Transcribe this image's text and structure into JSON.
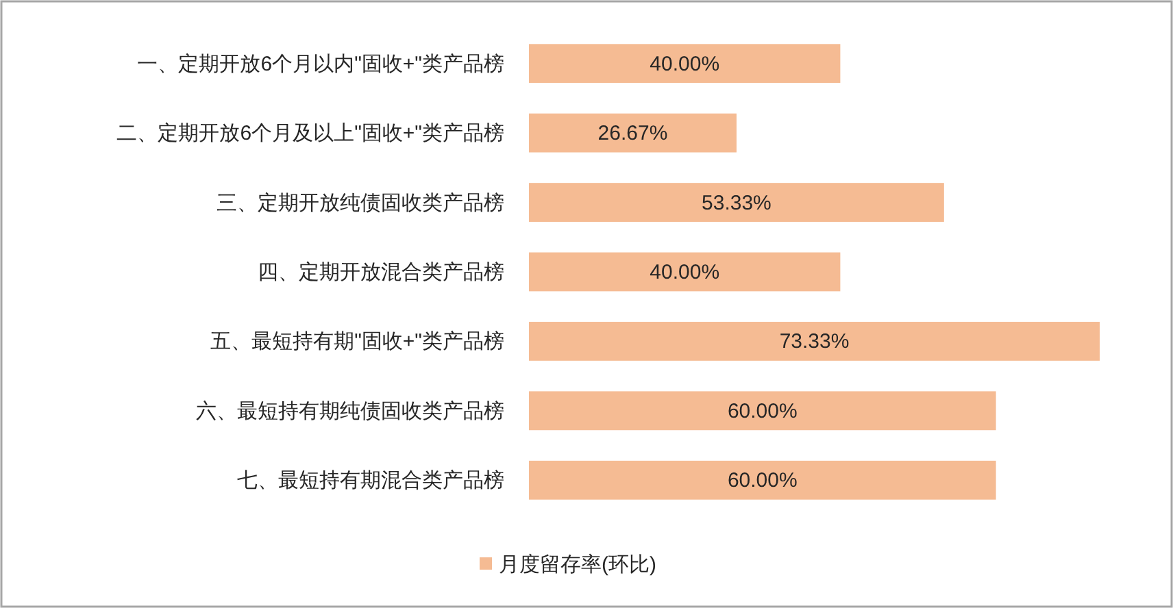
{
  "chart_data": {
    "type": "bar",
    "orientation": "horizontal",
    "categories": [
      "一、定期开放6个月以内\"固收+\"类产品榜",
      "二、定期开放6个月及以上\"固收+\"类产品榜",
      "三、定期开放纯债固收类产品榜",
      "四、定期开放混合类产品榜",
      "五、最短持有期\"固收+\"类产品榜",
      "六、最短持有期纯债固收类产品榜",
      "七、最短持有期混合类产品榜"
    ],
    "series": [
      {
        "name": "月度留存率(环比)",
        "color": "#f5bb93",
        "values": [
          40,
          26.67,
          53.33,
          40,
          73.33,
          60,
          60
        ],
        "value_labels": [
          "40.00%",
          "26.67%",
          "53.33%",
          "40.00%",
          "73.33%",
          "60.00%",
          "60.00%"
        ]
      }
    ],
    "legend": "bottom"
  }
}
